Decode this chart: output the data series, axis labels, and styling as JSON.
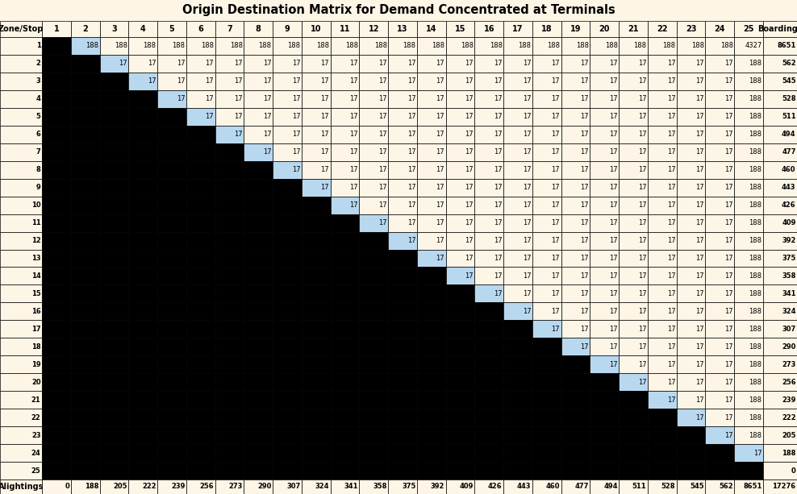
{
  "title": "Origin Destination Matrix for Demand Concentrated at Terminals",
  "boardings": [
    8651,
    562,
    545,
    528,
    511,
    494,
    477,
    460,
    443,
    426,
    409,
    392,
    375,
    358,
    341,
    324,
    307,
    290,
    273,
    256,
    239,
    222,
    205,
    188,
    0
  ],
  "alightings": [
    0,
    188,
    205,
    222,
    239,
    256,
    273,
    290,
    307,
    324,
    341,
    358,
    375,
    392,
    409,
    426,
    443,
    460,
    477,
    494,
    511,
    528,
    545,
    562,
    8651,
    17276
  ],
  "val_188": 188,
  "val_17": 17,
  "val_4327": 4327,
  "bg_color": "#fdf5e6",
  "black_color": "#000000",
  "light_blue": "#b8d8f0",
  "header_bg": "#fdf5e6",
  "border_color": "#000000",
  "text_color": "#000000",
  "title_fontsize": 10.5,
  "cell_fontsize": 6.0,
  "header_fontsize": 7.0
}
